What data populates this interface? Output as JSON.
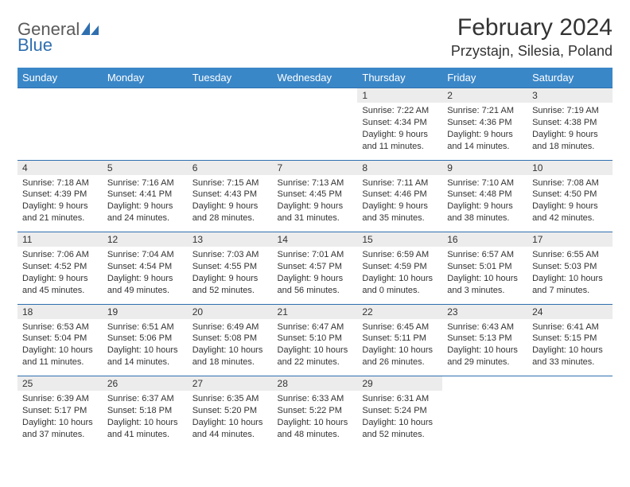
{
  "brand": {
    "word1": "General",
    "word2": "Blue",
    "text_color": "#5a5a5a",
    "accent_color": "#2f6fb0"
  },
  "header": {
    "month_title": "February 2024",
    "location": "Przystajn, Silesia, Poland"
  },
  "styles": {
    "header_bg": "#3a87c8",
    "header_text": "#ffffff",
    "daynum_bg": "#ececec",
    "border_color": "#2f6fb0",
    "body_bg": "#ffffff",
    "text_color": "#333333",
    "title_fontsize": 30,
    "location_fontsize": 18,
    "weekday_fontsize": 13,
    "cell_fontsize": 11
  },
  "weekdays": [
    "Sunday",
    "Monday",
    "Tuesday",
    "Wednesday",
    "Thursday",
    "Friday",
    "Saturday"
  ],
  "weeks": [
    [
      null,
      null,
      null,
      null,
      {
        "day": "1",
        "sunrise": "Sunrise: 7:22 AM",
        "sunset": "Sunset: 4:34 PM",
        "daylight1": "Daylight: 9 hours",
        "daylight2": "and 11 minutes."
      },
      {
        "day": "2",
        "sunrise": "Sunrise: 7:21 AM",
        "sunset": "Sunset: 4:36 PM",
        "daylight1": "Daylight: 9 hours",
        "daylight2": "and 14 minutes."
      },
      {
        "day": "3",
        "sunrise": "Sunrise: 7:19 AM",
        "sunset": "Sunset: 4:38 PM",
        "daylight1": "Daylight: 9 hours",
        "daylight2": "and 18 minutes."
      }
    ],
    [
      {
        "day": "4",
        "sunrise": "Sunrise: 7:18 AM",
        "sunset": "Sunset: 4:39 PM",
        "daylight1": "Daylight: 9 hours",
        "daylight2": "and 21 minutes."
      },
      {
        "day": "5",
        "sunrise": "Sunrise: 7:16 AM",
        "sunset": "Sunset: 4:41 PM",
        "daylight1": "Daylight: 9 hours",
        "daylight2": "and 24 minutes."
      },
      {
        "day": "6",
        "sunrise": "Sunrise: 7:15 AM",
        "sunset": "Sunset: 4:43 PM",
        "daylight1": "Daylight: 9 hours",
        "daylight2": "and 28 minutes."
      },
      {
        "day": "7",
        "sunrise": "Sunrise: 7:13 AM",
        "sunset": "Sunset: 4:45 PM",
        "daylight1": "Daylight: 9 hours",
        "daylight2": "and 31 minutes."
      },
      {
        "day": "8",
        "sunrise": "Sunrise: 7:11 AM",
        "sunset": "Sunset: 4:46 PM",
        "daylight1": "Daylight: 9 hours",
        "daylight2": "and 35 minutes."
      },
      {
        "day": "9",
        "sunrise": "Sunrise: 7:10 AM",
        "sunset": "Sunset: 4:48 PM",
        "daylight1": "Daylight: 9 hours",
        "daylight2": "and 38 minutes."
      },
      {
        "day": "10",
        "sunrise": "Sunrise: 7:08 AM",
        "sunset": "Sunset: 4:50 PM",
        "daylight1": "Daylight: 9 hours",
        "daylight2": "and 42 minutes."
      }
    ],
    [
      {
        "day": "11",
        "sunrise": "Sunrise: 7:06 AM",
        "sunset": "Sunset: 4:52 PM",
        "daylight1": "Daylight: 9 hours",
        "daylight2": "and 45 minutes."
      },
      {
        "day": "12",
        "sunrise": "Sunrise: 7:04 AM",
        "sunset": "Sunset: 4:54 PM",
        "daylight1": "Daylight: 9 hours",
        "daylight2": "and 49 minutes."
      },
      {
        "day": "13",
        "sunrise": "Sunrise: 7:03 AM",
        "sunset": "Sunset: 4:55 PM",
        "daylight1": "Daylight: 9 hours",
        "daylight2": "and 52 minutes."
      },
      {
        "day": "14",
        "sunrise": "Sunrise: 7:01 AM",
        "sunset": "Sunset: 4:57 PM",
        "daylight1": "Daylight: 9 hours",
        "daylight2": "and 56 minutes."
      },
      {
        "day": "15",
        "sunrise": "Sunrise: 6:59 AM",
        "sunset": "Sunset: 4:59 PM",
        "daylight1": "Daylight: 10 hours",
        "daylight2": "and 0 minutes."
      },
      {
        "day": "16",
        "sunrise": "Sunrise: 6:57 AM",
        "sunset": "Sunset: 5:01 PM",
        "daylight1": "Daylight: 10 hours",
        "daylight2": "and 3 minutes."
      },
      {
        "day": "17",
        "sunrise": "Sunrise: 6:55 AM",
        "sunset": "Sunset: 5:03 PM",
        "daylight1": "Daylight: 10 hours",
        "daylight2": "and 7 minutes."
      }
    ],
    [
      {
        "day": "18",
        "sunrise": "Sunrise: 6:53 AM",
        "sunset": "Sunset: 5:04 PM",
        "daylight1": "Daylight: 10 hours",
        "daylight2": "and 11 minutes."
      },
      {
        "day": "19",
        "sunrise": "Sunrise: 6:51 AM",
        "sunset": "Sunset: 5:06 PM",
        "daylight1": "Daylight: 10 hours",
        "daylight2": "and 14 minutes."
      },
      {
        "day": "20",
        "sunrise": "Sunrise: 6:49 AM",
        "sunset": "Sunset: 5:08 PM",
        "daylight1": "Daylight: 10 hours",
        "daylight2": "and 18 minutes."
      },
      {
        "day": "21",
        "sunrise": "Sunrise: 6:47 AM",
        "sunset": "Sunset: 5:10 PM",
        "daylight1": "Daylight: 10 hours",
        "daylight2": "and 22 minutes."
      },
      {
        "day": "22",
        "sunrise": "Sunrise: 6:45 AM",
        "sunset": "Sunset: 5:11 PM",
        "daylight1": "Daylight: 10 hours",
        "daylight2": "and 26 minutes."
      },
      {
        "day": "23",
        "sunrise": "Sunrise: 6:43 AM",
        "sunset": "Sunset: 5:13 PM",
        "daylight1": "Daylight: 10 hours",
        "daylight2": "and 29 minutes."
      },
      {
        "day": "24",
        "sunrise": "Sunrise: 6:41 AM",
        "sunset": "Sunset: 5:15 PM",
        "daylight1": "Daylight: 10 hours",
        "daylight2": "and 33 minutes."
      }
    ],
    [
      {
        "day": "25",
        "sunrise": "Sunrise: 6:39 AM",
        "sunset": "Sunset: 5:17 PM",
        "daylight1": "Daylight: 10 hours",
        "daylight2": "and 37 minutes."
      },
      {
        "day": "26",
        "sunrise": "Sunrise: 6:37 AM",
        "sunset": "Sunset: 5:18 PM",
        "daylight1": "Daylight: 10 hours",
        "daylight2": "and 41 minutes."
      },
      {
        "day": "27",
        "sunrise": "Sunrise: 6:35 AM",
        "sunset": "Sunset: 5:20 PM",
        "daylight1": "Daylight: 10 hours",
        "daylight2": "and 44 minutes."
      },
      {
        "day": "28",
        "sunrise": "Sunrise: 6:33 AM",
        "sunset": "Sunset: 5:22 PM",
        "daylight1": "Daylight: 10 hours",
        "daylight2": "and 48 minutes."
      },
      {
        "day": "29",
        "sunrise": "Sunrise: 6:31 AM",
        "sunset": "Sunset: 5:24 PM",
        "daylight1": "Daylight: 10 hours",
        "daylight2": "and 52 minutes."
      },
      null,
      null
    ]
  ]
}
